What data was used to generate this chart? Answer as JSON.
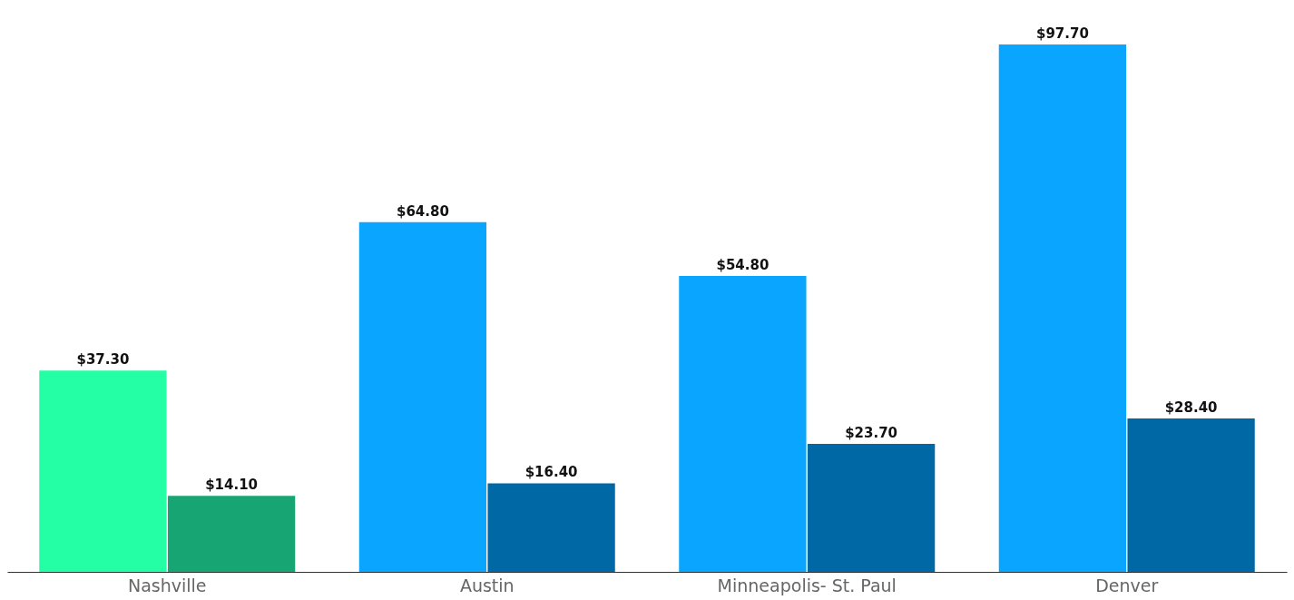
{
  "chart_data": {
    "type": "bar",
    "categories": [
      "Nashville",
      "Austin",
      "Minneapolis- St. Paul",
      "Denver"
    ],
    "series": [
      {
        "colors": [
          "#24ffa5",
          "#0aa5ff",
          "#0aa5ff",
          "#0aa5ff"
        ],
        "values": [
          37.3,
          64.8,
          54.8,
          97.7
        ],
        "value_labels": [
          "$37.30",
          "$64.80",
          "$54.80",
          "$97.70"
        ]
      },
      {
        "colors": [
          "#17a673",
          "#0069a5",
          "#0069a5",
          "#0069a5"
        ],
        "values": [
          14.1,
          16.4,
          23.7,
          28.4
        ],
        "value_labels": [
          "$14.10",
          "$16.40",
          "$23.70",
          "$28.40"
        ]
      }
    ],
    "tick_labels": "x",
    "grid": false
  }
}
